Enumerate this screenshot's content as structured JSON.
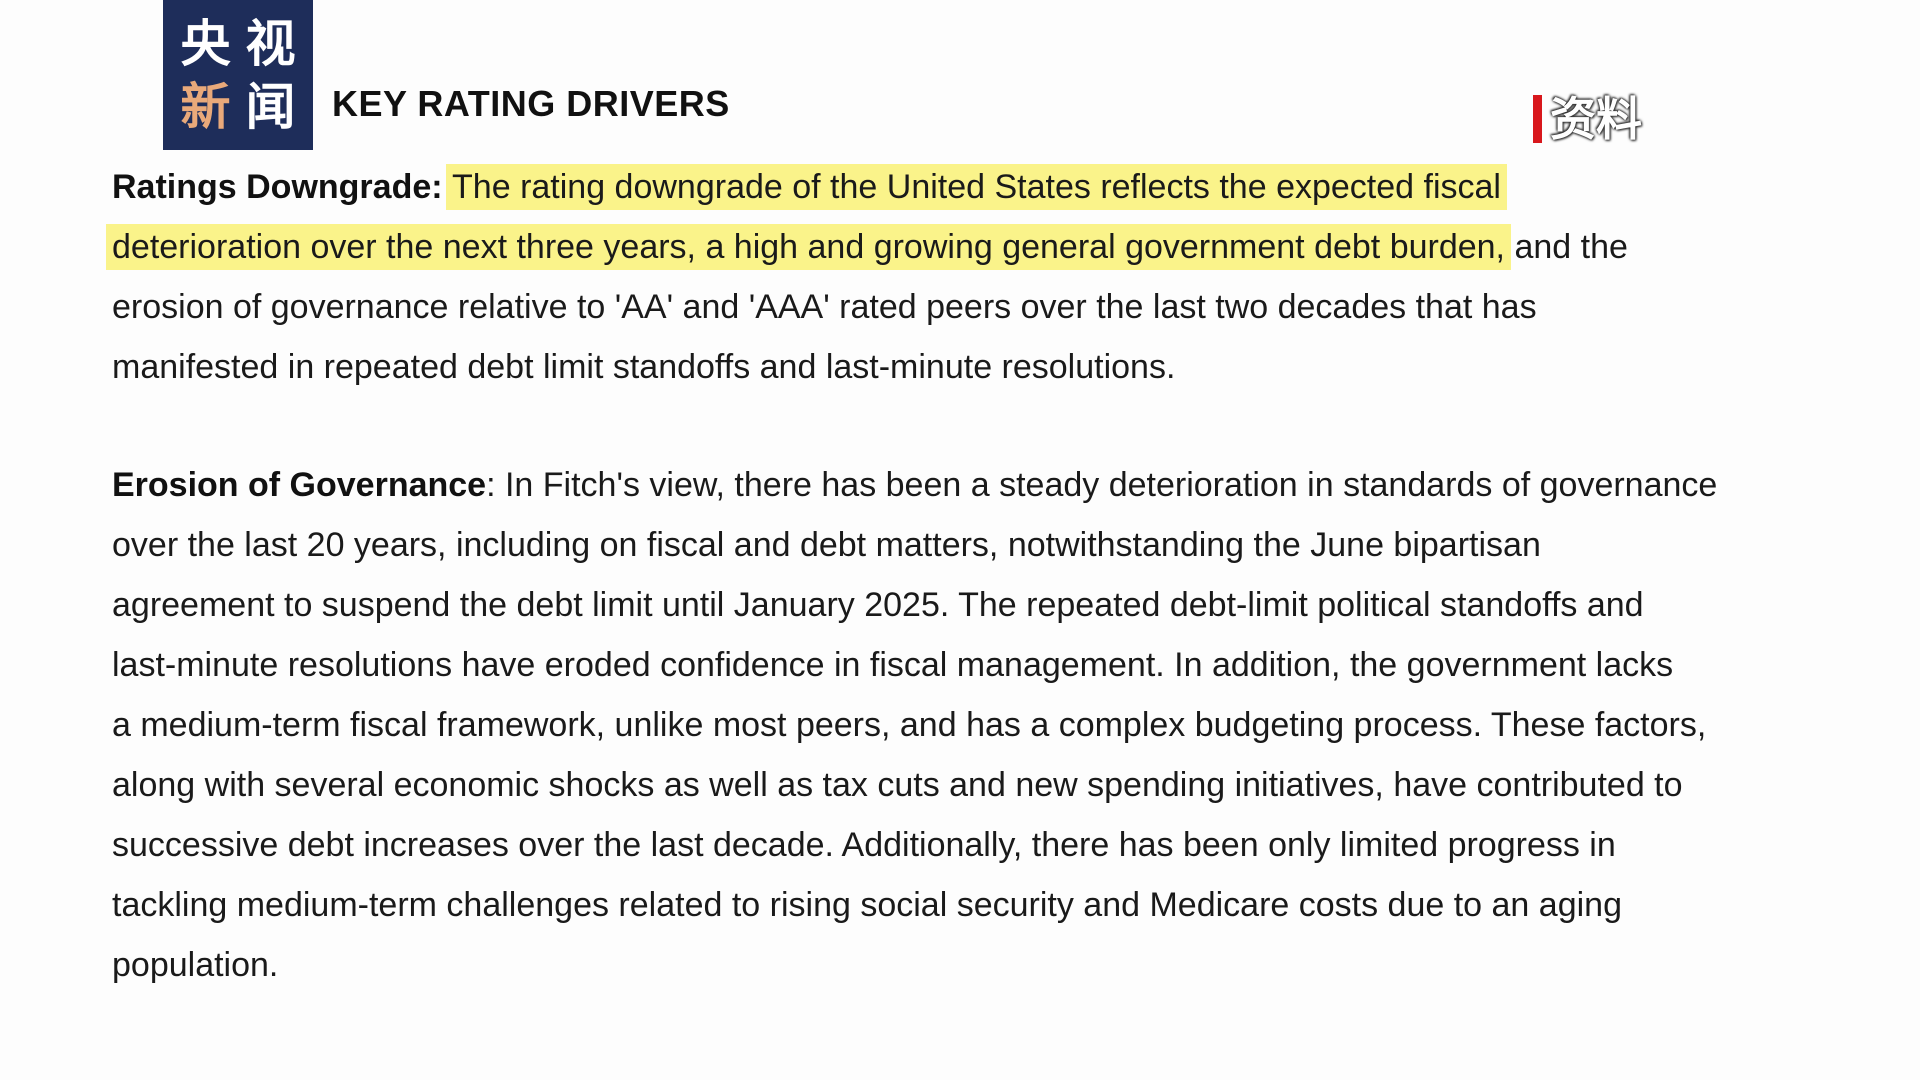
{
  "heading": "KEY RATING DRIVERS",
  "logo": {
    "top": [
      "央",
      "视"
    ],
    "bottom": [
      "新",
      "闻"
    ]
  },
  "tag": "资料",
  "colors": {
    "highlight": "#faf38a",
    "logo_bg": "#1e2d5a",
    "logo_accent": "#e9a97a",
    "tag_bar": "#d8171c"
  },
  "para1": {
    "label": "Ratings Downgrade:",
    "hl1": "The rating downgrade of the United States reflects the expected fiscal",
    "hl2": "deterioration over the next three years, a high and growing general government debt burden,",
    "rest2": " and the",
    "lines": [
      "erosion of governance relative to 'AA' and 'AAA' rated peers over the last two decades that has",
      "manifested in repeated debt limit standoffs and last-minute resolutions."
    ]
  },
  "para2": {
    "label": "Erosion of Governance",
    "first": ": In Fitch's view, there has been a steady deterioration in standards of governance",
    "lines": [
      "over the last 20 years, including on fiscal and debt matters, notwithstanding the June bipartisan",
      "agreement to suspend the debt limit until January 2025. The repeated debt-limit political standoffs and",
      "last-minute resolutions have eroded confidence in fiscal management. In addition, the government lacks",
      "a medium-term fiscal framework, unlike most peers, and has a complex budgeting process. These factors,",
      "along with several economic shocks as well as tax cuts and new spending initiatives, have contributed to",
      "successive debt increases over the last decade. Additionally, there has been only limited progress in",
      "tackling medium-term challenges related to rising social security and Medicare costs due to an aging",
      "population."
    ]
  }
}
